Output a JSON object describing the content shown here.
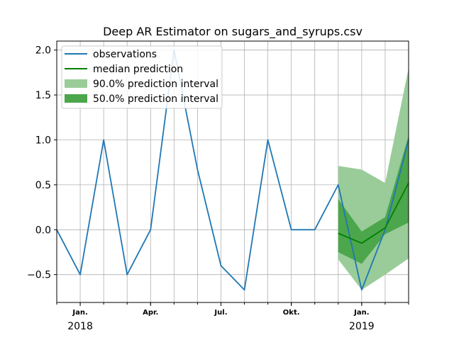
{
  "chart_data": {
    "type": "line",
    "title": "Deep AR Estimator on sugars_and_syrups.csv",
    "ylim": [
      -0.81,
      2.1
    ],
    "yticks": [
      2.0,
      1.5,
      1.0,
      0.5,
      0.0,
      -0.5
    ],
    "ytick_labels": [
      "2.0",
      "1.5",
      "1.0",
      "0.5",
      "0.0",
      "−0.5"
    ],
    "x_period": "monthly",
    "xlim": [
      "2017-12",
      "2019-03"
    ],
    "xtick_labels": [
      {
        "month": "2018-01",
        "label": "Jan."
      },
      {
        "month": "2018-04",
        "label": "Apr."
      },
      {
        "month": "2018-07",
        "label": "Jul."
      },
      {
        "month": "2018-10",
        "label": "Okt."
      },
      {
        "month": "2019-01",
        "label": "Jan."
      }
    ],
    "year_labels": [
      {
        "month": "2018-01",
        "label": "2018"
      },
      {
        "month": "2019-01",
        "label": "2019"
      }
    ],
    "grid": true,
    "legend_position": "top-left",
    "series": [
      {
        "name": "observations",
        "color": "#1f77b4",
        "x": [
          "2017-12",
          "2018-01",
          "2018-02",
          "2018-03",
          "2018-04",
          "2018-05",
          "2018-06",
          "2018-07",
          "2018-08",
          "2018-09",
          "2018-10",
          "2018-11",
          "2018-12",
          "2019-01",
          "2019-02",
          "2019-03"
        ],
        "values": [
          0.0,
          -0.5,
          1.0,
          -0.5,
          0.0,
          2.0,
          0.67,
          -0.4,
          -0.67,
          1.0,
          0.0,
          0.0,
          0.5,
          -0.67,
          0.0,
          1.0
        ]
      },
      {
        "name": "median prediction",
        "color": "#008000",
        "x": [
          "2018-12",
          "2019-01",
          "2019-02",
          "2019-03"
        ],
        "values": [
          -0.04,
          -0.15,
          0.02,
          0.52
        ]
      }
    ],
    "bands": [
      {
        "name": "90.0% prediction interval",
        "color": "#99cc99",
        "x": [
          "2018-12",
          "2019-01",
          "2019-02",
          "2019-03"
        ],
        "lower": [
          -0.33,
          -0.67,
          -0.5,
          -0.32
        ],
        "upper": [
          0.71,
          0.67,
          0.52,
          1.8
        ]
      },
      {
        "name": "50.0% prediction interval",
        "color": "#4ca64c",
        "x": [
          "2018-12",
          "2019-01",
          "2019-02",
          "2019-03"
        ],
        "lower": [
          -0.25,
          -0.38,
          -0.05,
          0.08
        ],
        "upper": [
          0.34,
          -0.02,
          0.14,
          1.05
        ]
      }
    ]
  }
}
